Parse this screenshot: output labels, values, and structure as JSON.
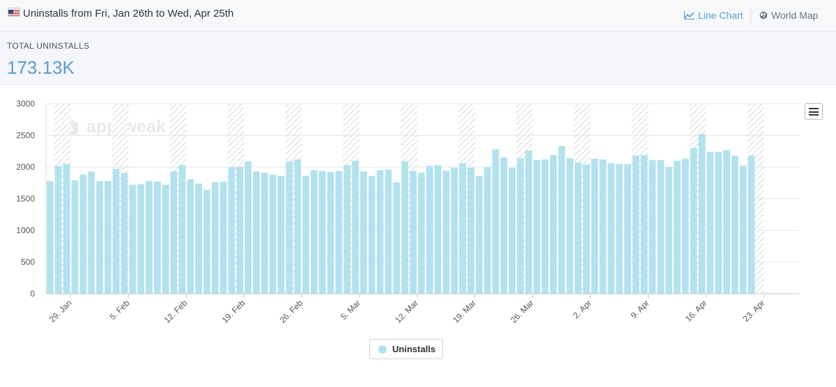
{
  "header": {
    "title": "Uninstalls from Fri, Jan 26th to Wed, Apr 25th",
    "flag_icon": "us-flag-icon",
    "line_chart_label": "Line Chart",
    "world_map_label": "World Map"
  },
  "summary": {
    "label": "TOTAL UNINSTALLS",
    "value": "173.13K"
  },
  "colors": {
    "bar": "#b2e2ee",
    "accent": "#5b9bd5",
    "weekend_hatch": "#d8d8d8"
  },
  "chart_data": {
    "type": "bar",
    "title": "",
    "xlabel": "",
    "ylabel": "",
    "ylim": [
      0,
      3000
    ],
    "yticks": [
      0,
      500,
      1000,
      1500,
      2000,
      2500,
      3000
    ],
    "grid": true,
    "x_tick_labels": [
      "29. Jan",
      "5. Feb",
      "12. Feb",
      "19. Feb",
      "26. Feb",
      "5. Mar",
      "12. Mar",
      "19. Mar",
      "26. Mar",
      "2. Apr",
      "9. Apr",
      "16. Apr",
      "23. Apr"
    ],
    "x_start": "2018-01-26",
    "weekend_starts": [
      "2018-01-27",
      "2018-02-03",
      "2018-02-10",
      "2018-02-17",
      "2018-02-24",
      "2018-03-03",
      "2018-03-10",
      "2018-03-17",
      "2018-03-24",
      "2018-03-31",
      "2018-04-07",
      "2018-04-14",
      "2018-04-21"
    ],
    "legend_position": "bottom-center",
    "series": [
      {
        "name": "Uninstalls",
        "values": [
          1780,
          2020,
          2050,
          1790,
          1880,
          1930,
          1780,
          1780,
          1970,
          1910,
          1720,
          1730,
          1780,
          1770,
          1720,
          1930,
          2030,
          1810,
          1740,
          1640,
          1760,
          1770,
          2000,
          2000,
          2090,
          1930,
          1910,
          1880,
          1860,
          2090,
          2120,
          1860,
          1950,
          1940,
          1920,
          1940,
          2030,
          2100,
          1930,
          1860,
          1950,
          1960,
          1760,
          2090,
          1940,
          1910,
          2020,
          2030,
          1940,
          1990,
          2060,
          1990,
          1860,
          2000,
          2280,
          2150,
          1990,
          2140,
          2260,
          2110,
          2120,
          2190,
          2330,
          2140,
          2070,
          2040,
          2130,
          2120,
          2060,
          2050,
          2050,
          2180,
          2190,
          2110,
          2110,
          2000,
          2100,
          2130,
          2300,
          2520,
          2240,
          2240,
          2270,
          2180,
          2020,
          2180
        ]
      }
    ]
  }
}
